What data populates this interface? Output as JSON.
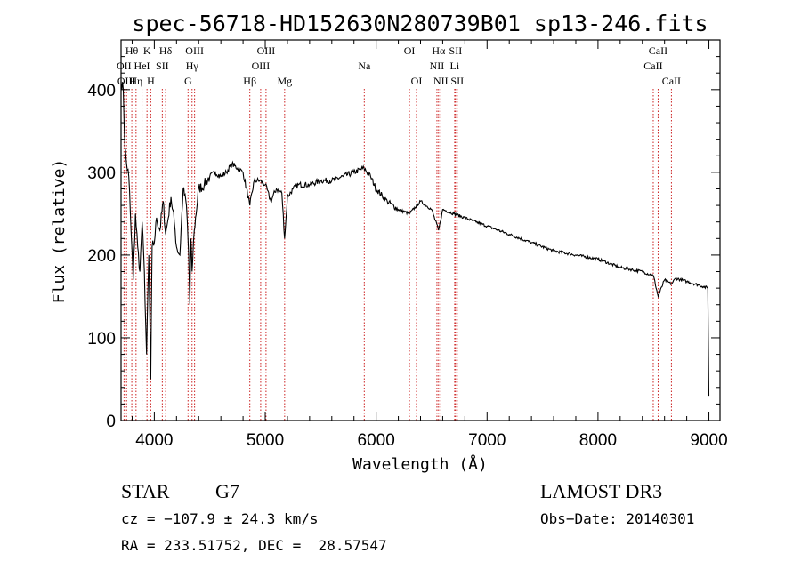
{
  "chart_data": {
    "type": "line",
    "title": "spec-56718-HD152630N280739B01_sp13-246.fits",
    "xlabel": "Wavelength (Å)",
    "ylabel": "Flux (relative)",
    "xlim": [
      3700,
      9100
    ],
    "ylim": [
      0,
      460
    ],
    "xticks": [
      4000,
      5000,
      6000,
      7000,
      8000,
      9000
    ],
    "yticks": [
      0,
      100,
      200,
      300,
      400
    ],
    "xtick_labels": [
      "4000",
      "5000",
      "6000",
      "7000",
      "8000",
      "9000"
    ],
    "ytick_labels": [
      "0",
      "100",
      "200",
      "300",
      "400"
    ],
    "series": [
      {
        "name": "spectrum",
        "x": [
          3700,
          3720,
          3735,
          3750,
          3770,
          3790,
          3810,
          3830,
          3850,
          3870,
          3890,
          3910,
          3930,
          3950,
          3968,
          3980,
          4000,
          4020,
          4050,
          4080,
          4102,
          4120,
          4150,
          4180,
          4200,
          4230,
          4260,
          4290,
          4310,
          4320,
          4330,
          4340,
          4360,
          4400,
          4450,
          4500,
          4550,
          4600,
          4650,
          4700,
          4750,
          4800,
          4861,
          4900,
          4950,
          5000,
          5050,
          5100,
          5150,
          5175,
          5200,
          5250,
          5300,
          5400,
          5500,
          5600,
          5700,
          5800,
          5890,
          5950,
          6000,
          6100,
          6200,
          6300,
          6400,
          6500,
          6563,
          6600,
          6700,
          6800,
          6900,
          7000,
          7200,
          7400,
          7600,
          7800,
          8000,
          8200,
          8400,
          8500,
          8542,
          8600,
          8662,
          8700,
          8800,
          8900,
          8950,
          8990,
          9000
        ],
        "y": [
          410,
          400,
          330,
          310,
          295,
          230,
          170,
          250,
          210,
          180,
          240,
          180,
          80,
          200,
          50,
          210,
          215,
          245,
          230,
          265,
          225,
          240,
          270,
          240,
          210,
          200,
          280,
          260,
          200,
          140,
          220,
          180,
          230,
          280,
          285,
          295,
          300,
          295,
          300,
          310,
          305,
          300,
          260,
          290,
          290,
          285,
          265,
          280,
          275,
          220,
          270,
          280,
          285,
          285,
          290,
          290,
          295,
          300,
          305,
          295,
          280,
          265,
          255,
          250,
          265,
          255,
          230,
          255,
          250,
          245,
          240,
          235,
          225,
          215,
          205,
          200,
          195,
          185,
          180,
          175,
          150,
          170,
          165,
          172,
          168,
          164,
          162,
          160,
          30
        ]
      }
    ],
    "lines": [
      {
        "name": "Hθ",
        "wl": 3797,
        "row": 0
      },
      {
        "name": "K",
        "wl": 3934,
        "row": 0
      },
      {
        "name": "Hδ",
        "wl": 4102,
        "row": 0
      },
      {
        "name": "OIII",
        "wl": 4363,
        "row": 0
      },
      {
        "name": "OIII",
        "wl": 5007,
        "row": 0
      },
      {
        "name": "OI",
        "wl": 6300,
        "row": 0
      },
      {
        "name": "Hα",
        "wl": 6563,
        "row": 0
      },
      {
        "name": "SII",
        "wl": 6716,
        "row": 0
      },
      {
        "name": "CaII",
        "wl": 8542,
        "row": 0
      },
      {
        "name": "OII",
        "wl": 3727,
        "row": 1
      },
      {
        "name": "HeI",
        "wl": 3889,
        "row": 1
      },
      {
        "name": "SII",
        "wl": 4072,
        "row": 1
      },
      {
        "name": "Hγ",
        "wl": 4340,
        "row": 1
      },
      {
        "name": "OIII",
        "wl": 4959,
        "row": 1
      },
      {
        "name": "Na",
        "wl": 5893,
        "row": 1
      },
      {
        "name": "NII",
        "wl": 6548,
        "row": 1
      },
      {
        "name": "Li",
        "wl": 6708,
        "row": 1
      },
      {
        "name": "CaII",
        "wl": 8498,
        "row": 1
      },
      {
        "name": "OIII",
        "wl": 3750,
        "row": 2
      },
      {
        "name": "Hη",
        "wl": 3835,
        "row": 2
      },
      {
        "name": "H",
        "wl": 3968,
        "row": 2
      },
      {
        "name": "G",
        "wl": 4304,
        "row": 2
      },
      {
        "name": "Hβ",
        "wl": 4861,
        "row": 2
      },
      {
        "name": "Mg",
        "wl": 5175,
        "row": 2
      },
      {
        "name": "OI",
        "wl": 6364,
        "row": 2
      },
      {
        "name": "NII",
        "wl": 6583,
        "row": 2
      },
      {
        "name": "SII",
        "wl": 6731,
        "row": 2
      },
      {
        "name": "CaII",
        "wl": 8662,
        "row": 2
      }
    ]
  },
  "info": {
    "class_label": "STAR",
    "subclass": "G7",
    "survey": "LAMOST DR3",
    "cz": "cz = −107.9 ± 24.3 km/s",
    "obs_date": "Obs−Date: 20140301",
    "radec": "RA = 233.51752, DEC =  28.57547"
  }
}
